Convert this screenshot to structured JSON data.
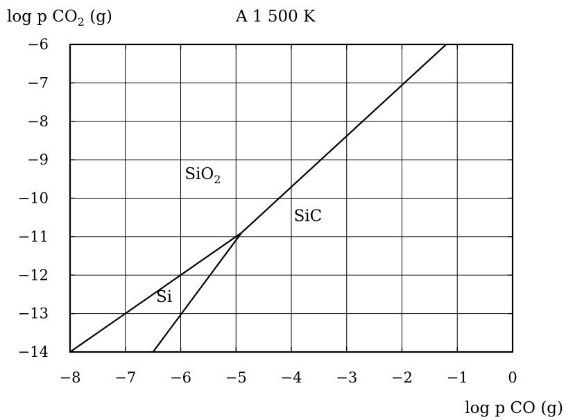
{
  "chart_data": {
    "type": "line",
    "title": "A 1 500 K",
    "ylabel_parts": [
      "log p CO",
      "2",
      " (g)"
    ],
    "xlabel": "log p CO (g)",
    "xlim": [
      -8,
      0
    ],
    "ylim": [
      -14,
      -6
    ],
    "grid": true,
    "x_ticks": [
      -8,
      -7,
      -6,
      -5,
      -4,
      -3,
      -2,
      -1,
      0
    ],
    "x_tick_labels": [
      "−8",
      "−7",
      "−6",
      "−5",
      "−4",
      "−3",
      "−2",
      "−1",
      "0"
    ],
    "y_ticks": [
      -6,
      -7,
      -8,
      -9,
      -10,
      -11,
      -12,
      -13,
      -14
    ],
    "y_tick_labels": [
      "−6",
      "−7",
      "−8",
      "−9",
      "−10",
      "−11",
      "−12",
      "−13",
      "−14"
    ],
    "series": [
      {
        "x": [
          -8,
          -4.9
        ],
        "y": [
          -14,
          -10.9
        ]
      },
      {
        "x": [
          -4.9,
          -1.2
        ],
        "y": [
          -10.9,
          -6.0
        ]
      },
      {
        "x": [
          -6.5,
          -4.9
        ],
        "y": [
          -14,
          -10.9
        ]
      }
    ],
    "regions": [
      {
        "label_parts": [
          "SiO",
          "2"
        ],
        "x": -5.6,
        "y": -9.5
      },
      {
        "label_parts": [
          "SiC"
        ],
        "x": -3.7,
        "y": -10.6
      },
      {
        "label_parts": [
          "Si"
        ],
        "x": -6.3,
        "y": -12.7
      }
    ]
  }
}
